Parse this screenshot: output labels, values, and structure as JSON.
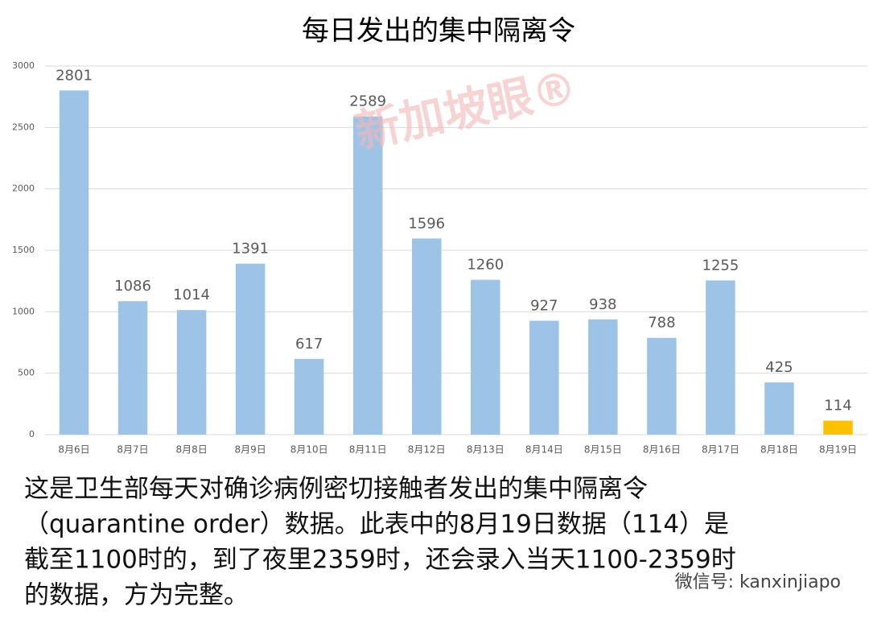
{
  "chart_data": {
    "type": "bar",
    "title": "每日发出的集中隔离令",
    "categories": [
      "8月6日",
      "8月7日",
      "8月8日",
      "8月9日",
      "8月10日",
      "8月11日",
      "8月12日",
      "8月13日",
      "8月14日",
      "8月15日",
      "8月16日",
      "8月17日",
      "8月18日",
      "8月19日"
    ],
    "values": [
      2801,
      1086,
      1014,
      1391,
      617,
      2589,
      1596,
      1260,
      927,
      938,
      788,
      1255,
      425,
      114
    ],
    "colors": [
      "#9dc3e6",
      "#9dc3e6",
      "#9dc3e6",
      "#9dc3e6",
      "#9dc3e6",
      "#9dc3e6",
      "#9dc3e6",
      "#9dc3e6",
      "#9dc3e6",
      "#9dc3e6",
      "#9dc3e6",
      "#9dc3e6",
      "#9dc3e6",
      "#ffc000"
    ],
    "ylim": [
      0,
      3000
    ],
    "yticks": [
      0,
      500,
      1000,
      1500,
      2000,
      2500,
      3000
    ],
    "grid": true
  },
  "watermark": "新加坡眼®",
  "caption_lines": [
    "这是卫生部每天对确诊病例密切接触者发出的集中隔离令",
    "（quarantine order）数据。此表中的8月19日数据（114）是",
    "截至1100时的，到了夜里2359时，还会录入当天1100-2359时",
    "的数据，方为完整。"
  ],
  "wechat_id": "微信号: kanxinjiapo"
}
